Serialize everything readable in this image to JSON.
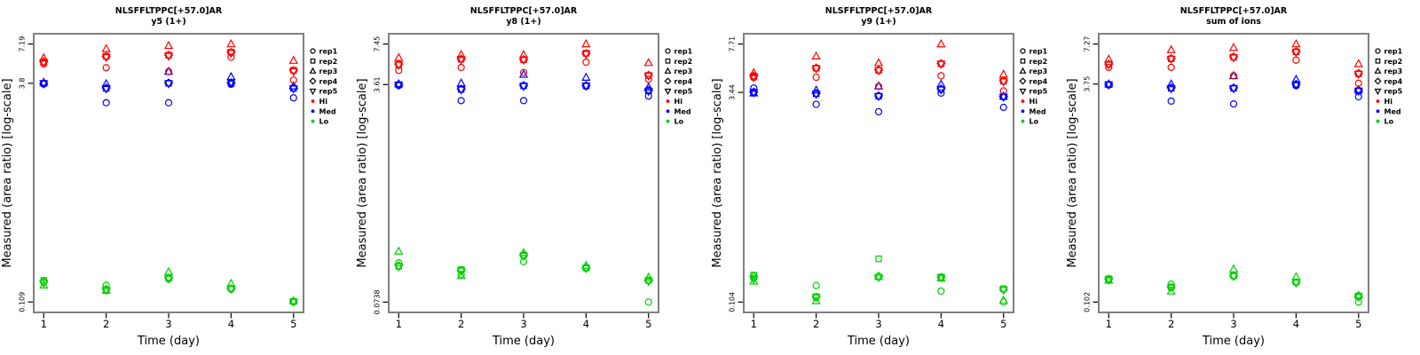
{
  "figure": {
    "peptide": "NLSFFLTPPC[+57.0]AR",
    "xlabel": "Time (day)",
    "ylabel": "Measured (area ratio) [log-scale]"
  },
  "colors": {
    "hi": "#FF0000",
    "med": "#0000FF",
    "lo": "#00D000",
    "frame": "#808080",
    "text": "#000000"
  },
  "legend": {
    "replicates": [
      {
        "label": "rep1",
        "marker": "circle"
      },
      {
        "label": "rep2",
        "marker": "square"
      },
      {
        "label": "rep3",
        "marker": "triangle-up"
      },
      {
        "label": "rep4",
        "marker": "diamond"
      },
      {
        "label": "rep5",
        "marker": "triangle-down"
      }
    ],
    "groups": [
      {
        "label": "Hi",
        "color": "#FF0000"
      },
      {
        "label": "Med",
        "color": "#0000FF"
      },
      {
        "label": "Lo",
        "color": "#00D000"
      }
    ]
  },
  "chart_data": [
    {
      "id": "y5-1plus",
      "type": "scatter",
      "title": "NLSFFLTPPC[+57.0]AR",
      "subtitle": "y5 (1+)",
      "xlabel": "Time (day)",
      "ylabel": "Measured (area ratio) [log-scale]",
      "yscale": "log",
      "grid": false,
      "legend_position": "right",
      "x_days": [
        1,
        2,
        3,
        4,
        5
      ],
      "xtick_labels": [
        "1",
        "2",
        "3",
        "4",
        "5"
      ],
      "ytick_values": [
        7.19,
        3.8,
        0.109
      ],
      "ytick_labels": [
        "7.19",
        "3.8",
        "0.109"
      ],
      "xlim": [
        0.84,
        5.16
      ],
      "ylim": [
        0.092,
        8.5
      ],
      "rep_order": [
        "rep1",
        "rep2",
        "rep3",
        "rep4",
        "rep5"
      ],
      "series": [
        {
          "group": "Lo",
          "color": "#00D000",
          "days": [
            [
              0.15,
              0.155,
              0.143,
              0.152,
              0.148
            ],
            [
              0.143,
              0.133,
              0.131,
              0.134,
              0.132
            ],
            [
              0.158,
              0.162,
              0.178,
              0.161,
              0.159
            ],
            [
              0.134,
              0.136,
              0.147,
              0.135,
              0.134
            ],
            [
              0.109,
              0.11,
              0.111,
              0.11,
              0.109
            ]
          ]
        },
        {
          "group": "Med",
          "color": "#0000FF",
          "days": [
            [
              3.75,
              3.8,
              3.85,
              3.8,
              3.78
            ],
            [
              2.77,
              3.5,
              3.77,
              3.52,
              3.48
            ],
            [
              2.77,
              3.8,
              4.6,
              3.82,
              3.78
            ],
            [
              3.74,
              3.8,
              4.22,
              3.83,
              3.85
            ],
            [
              3.0,
              3.5,
              3.63,
              3.52,
              3.48
            ]
          ]
        },
        {
          "group": "Hi",
          "color": "#FF0000",
          "days": [
            [
              5.2,
              5.35,
              5.75,
              5.4,
              5.32
            ],
            [
              4.9,
              5.9,
              6.65,
              5.85,
              5.8
            ],
            [
              4.6,
              6.0,
              7.0,
              6.0,
              5.92
            ],
            [
              5.8,
              6.3,
              7.19,
              6.27,
              6.2
            ],
            [
              4.0,
              4.7,
              5.5,
              4.67,
              4.6
            ]
          ]
        }
      ]
    },
    {
      "id": "y8-1plus",
      "type": "scatter",
      "title": "NLSFFLTPPC[+57.0]AR",
      "subtitle": "y8 (1+)",
      "xlabel": "Time (day)",
      "ylabel": "Measured (area ratio) [log-scale]",
      "yscale": "log",
      "grid": false,
      "legend_position": "right",
      "x_days": [
        1,
        2,
        3,
        4,
        5
      ],
      "xtick_labels": [
        "1",
        "2",
        "3",
        "4",
        "5"
      ],
      "ytick_values": [
        7.45,
        3.61,
        0.0738
      ],
      "ytick_labels": [
        "7.45",
        "3.61",
        "0.0738"
      ],
      "xlim": [
        0.84,
        5.16
      ],
      "ylim": [
        0.0614,
        8.96
      ],
      "rep_order": [
        "rep1",
        "rep2",
        "rep3",
        "rep4",
        "rep5"
      ],
      "series": [
        {
          "group": "Lo",
          "color": "#00D000",
          "days": [
            [
              0.149,
              0.14,
              0.183,
              0.142,
              0.139
            ],
            [
              0.121,
              0.132,
              0.118,
              0.13,
              0.129
            ],
            [
              0.152,
              0.171,
              0.178,
              0.17,
              0.168
            ],
            [
              0.135,
              0.136,
              0.142,
              0.136,
              0.135
            ],
            [
              0.0738,
              0.109,
              0.115,
              0.108,
              0.107
            ]
          ]
        },
        {
          "group": "Med",
          "color": "#0000FF",
          "days": [
            [
              3.55,
              3.6,
              3.65,
              3.6,
              3.58
            ],
            [
              2.71,
              3.31,
              3.7,
              3.33,
              3.29
            ],
            [
              2.71,
              3.53,
              4.32,
              3.55,
              3.5
            ],
            [
              3.5,
              3.53,
              4.1,
              3.55,
              3.52
            ],
            [
              2.94,
              3.23,
              3.44,
              3.25,
              3.2
            ]
          ]
        },
        {
          "group": "Hi",
          "color": "#FF0000",
          "days": [
            [
              4.65,
              5.16,
              5.83,
              5.2,
              5.12
            ],
            [
              4.9,
              5.68,
              6.15,
              5.7,
              5.65
            ],
            [
              4.48,
              5.63,
              6.15,
              5.65,
              5.6
            ],
            [
              5.39,
              6.32,
              7.45,
              6.28,
              6.22
            ],
            [
              3.97,
              4.25,
              5.33,
              4.27,
              4.22
            ]
          ]
        }
      ]
    },
    {
      "id": "y9-1plus",
      "type": "scatter",
      "title": "NLSFFLTPPC[+57.0]AR",
      "subtitle": "y9 (1+)",
      "xlabel": "Time (day)",
      "ylabel": "Measured (area ratio) [log-scale]",
      "yscale": "log",
      "grid": false,
      "legend_position": "right",
      "x_days": [
        1,
        2,
        3,
        4,
        5
      ],
      "xtick_labels": [
        "1",
        "2",
        "3",
        "4",
        "5"
      ],
      "ytick_values": [
        7.71,
        3.44,
        0.104
      ],
      "ytick_labels": [
        "7.71",
        "3.44",
        "0.104"
      ],
      "xlim": [
        0.84,
        5.16
      ],
      "ylim": [
        0.0875,
        9.16
      ],
      "rep_order": [
        "rep1",
        "rep2",
        "rep3",
        "rep4",
        "rep5"
      ],
      "series": [
        {
          "group": "Lo",
          "color": "#00D000",
          "days": [
            [
              0.155,
              0.163,
              0.147,
              0.16,
              0.152
            ],
            [
              0.137,
              0.114,
              0.106,
              0.113,
              0.112
            ],
            [
              0.158,
              0.214,
              0.159,
              0.16,
              0.157
            ],
            [
              0.125,
              0.158,
              0.155,
              0.157,
              0.156
            ],
            [
              0.104,
              0.13,
              0.107,
              0.128,
              0.127
            ]
          ]
        },
        {
          "group": "Med",
          "color": "#0000FF",
          "days": [
            [
              3.7,
              3.45,
              3.4,
              3.46,
              3.43
            ],
            [
              2.82,
              3.36,
              3.57,
              3.38,
              3.34
            ],
            [
              2.49,
              3.23,
              3.82,
              3.25,
              3.22
            ],
            [
              3.4,
              3.62,
              3.94,
              3.64,
              3.6
            ],
            [
              2.68,
              3.2,
              3.22,
              3.21,
              3.18
            ]
          ]
        },
        {
          "group": "Hi",
          "color": "#FF0000",
          "days": [
            [
              4.4,
              4.5,
              4.77,
              4.52,
              4.47
            ],
            [
              4.43,
              5.15,
              6.3,
              5.17,
              5.12
            ],
            [
              3.8,
              4.97,
              5.63,
              5.0,
              4.95
            ],
            [
              4.54,
              5.55,
              7.71,
              5.57,
              5.52
            ],
            [
              3.53,
              4.15,
              4.65,
              4.17,
              4.12
            ]
          ]
        }
      ]
    },
    {
      "id": "sum-of-ions",
      "type": "scatter",
      "title": "NLSFFLTPPC[+57.0]AR",
      "subtitle": "sum of ions",
      "xlabel": "Time (day)",
      "ylabel": "Measured (area ratio) [log-scale]",
      "yscale": "log",
      "grid": false,
      "legend_position": "right",
      "x_days": [
        1,
        2,
        3,
        4,
        5
      ],
      "xtick_labels": [
        "1",
        "2",
        "3",
        "4",
        "5"
      ],
      "ytick_values": [
        7.27,
        3.75,
        0.102
      ],
      "ytick_labels": [
        "7.27",
        "3.75",
        "0.102"
      ],
      "xlim": [
        0.84,
        5.16
      ],
      "ylim": [
        0.086,
        8.62
      ],
      "rep_order": [
        "rep1",
        "rep2",
        "rep3",
        "rep4",
        "rep5"
      ],
      "series": [
        {
          "group": "Lo",
          "color": "#00D000",
          "days": [
            [
              0.148,
              0.15,
              0.146,
              0.149,
              0.147
            ],
            [
              0.137,
              0.131,
              0.122,
              0.13,
              0.129
            ],
            [
              0.157,
              0.158,
              0.176,
              0.157,
              0.156
            ],
            [
              0.141,
              0.142,
              0.155,
              0.141,
              0.14
            ],
            [
              0.102,
              0.113,
              0.114,
              0.112,
              0.111
            ]
          ]
        },
        {
          "group": "Med",
          "color": "#0000FF",
          "days": [
            [
              3.69,
              3.72,
              3.75,
              3.73,
              3.71
            ],
            [
              2.83,
              3.5,
              3.75,
              3.52,
              3.48
            ],
            [
              2.7,
              3.5,
              4.3,
              3.52,
              3.48
            ],
            [
              3.65,
              3.72,
              4.05,
              3.74,
              3.7
            ],
            [
              3.04,
              3.36,
              3.42,
              3.37,
              3.34
            ]
          ]
        },
        {
          "group": "Hi",
          "color": "#FF0000",
          "days": [
            [
              4.94,
              5.19,
              5.65,
              5.22,
              5.16
            ],
            [
              4.94,
              5.7,
              6.6,
              5.72,
              5.66
            ],
            [
              4.3,
              5.85,
              6.85,
              5.87,
              5.8
            ],
            [
              5.56,
              6.4,
              7.27,
              6.42,
              6.35
            ],
            [
              3.8,
              4.45,
              5.24,
              4.47,
              4.42
            ]
          ]
        }
      ]
    }
  ]
}
